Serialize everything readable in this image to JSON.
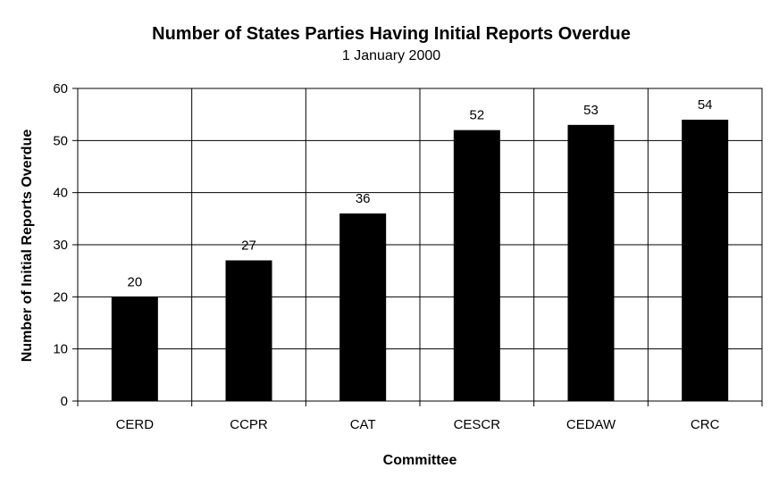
{
  "chart_data": {
    "type": "bar",
    "title": "Number of States Parties Having Initial Reports Overdue",
    "subtitle": "1 January 2000",
    "xlabel": "Committee",
    "ylabel": "Number of Initial Reports Overdue",
    "categories": [
      "CERD",
      "CCPR",
      "CAT",
      "CESCR",
      "CEDAW",
      "CRC"
    ],
    "values": [
      20,
      27,
      36,
      52,
      53,
      54
    ],
    "ylim": [
      0,
      60
    ],
    "yticks": [
      0,
      10,
      20,
      30,
      40,
      50,
      60
    ],
    "grid": true,
    "bar_color": "#000000"
  }
}
